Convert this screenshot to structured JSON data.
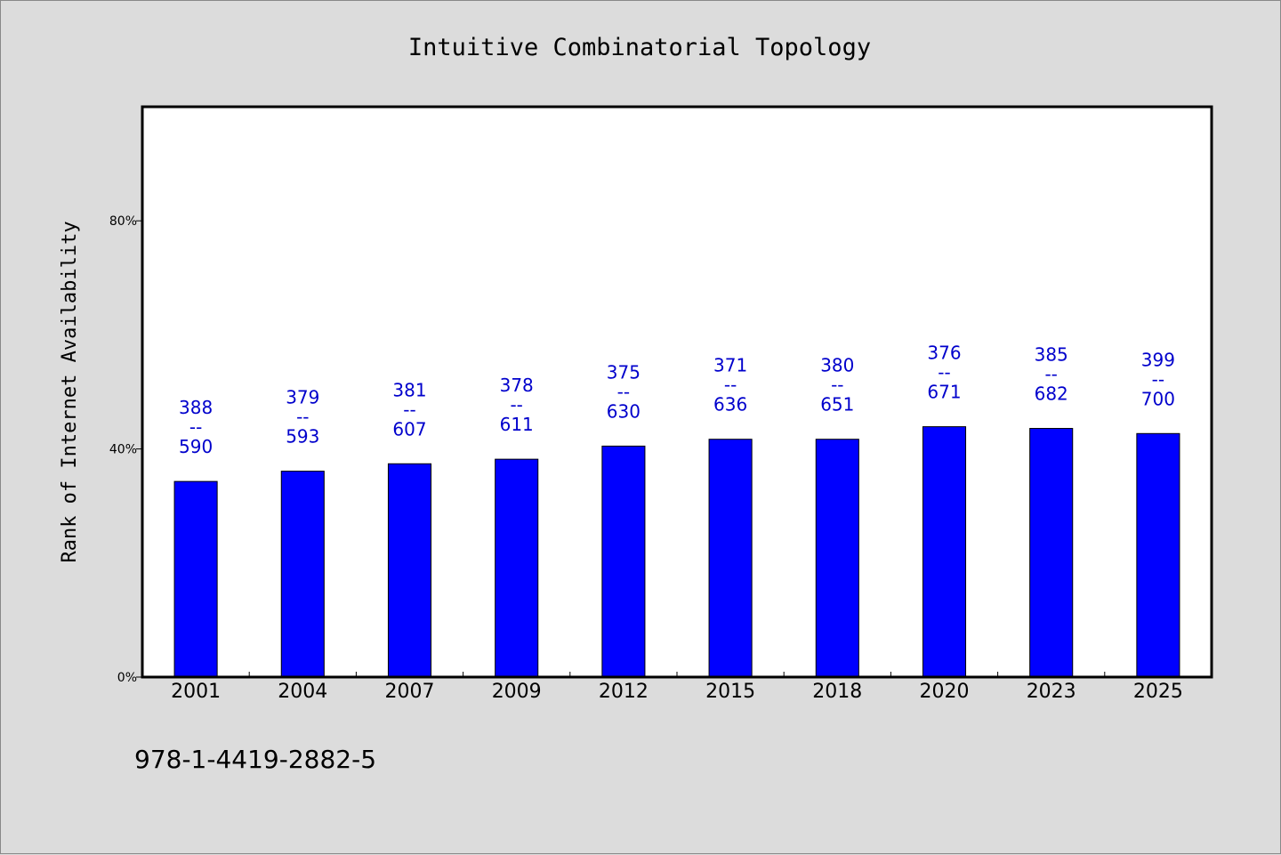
{
  "chart_data": {
    "type": "bar",
    "title": "Intuitive Combinatorial Topology",
    "xlabel": "",
    "ylabel": "Rank of Internet Availability",
    "categories": [
      "2001",
      "2004",
      "2007",
      "2009",
      "2012",
      "2015",
      "2018",
      "2020",
      "2023",
      "2025"
    ],
    "values": [
      34.3,
      36.1,
      37.4,
      38.2,
      40.5,
      41.7,
      41.7,
      43.9,
      43.6,
      42.7
    ],
    "value_unit": "%",
    "label_top": [
      "388",
      "379",
      "381",
      "378",
      "375",
      "371",
      "380",
      "376",
      "385",
      "399"
    ],
    "label_separator": "--",
    "label_bottom": [
      "590",
      "593",
      "607",
      "611",
      "630",
      "636",
      "651",
      "671",
      "682",
      "700"
    ],
    "ylim": [
      0,
      100
    ],
    "yticks": [
      0,
      40,
      80
    ],
    "ytick_labels": [
      "0%",
      "40%",
      "80%"
    ],
    "grid": false,
    "legend": "none",
    "colors": {
      "bar": "#0000ff",
      "bar_outline": "#000000",
      "data_label": "#0000cc",
      "background": "#dcdcdc",
      "plot_background": "#ffffff"
    }
  },
  "footnote": "978-1-4419-2882-5"
}
